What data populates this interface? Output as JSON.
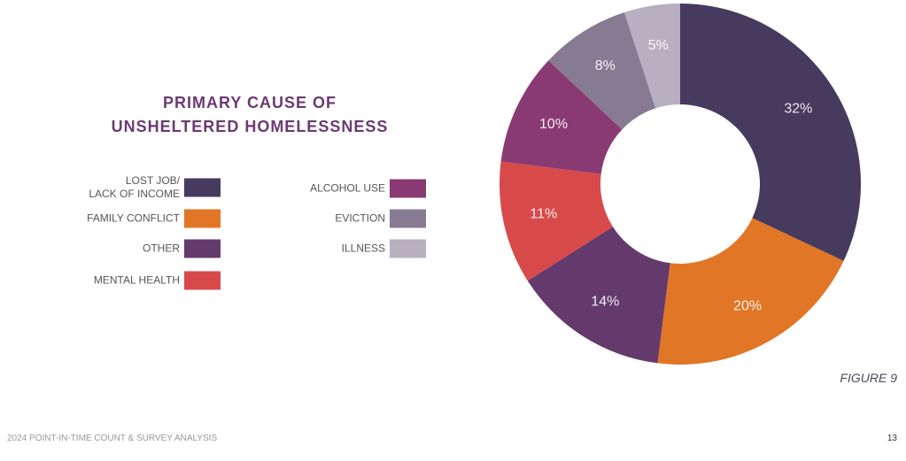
{
  "chart_data": {
    "type": "donut",
    "title": "PRIMARY CAUSE OF\nUNSHELTERED HOMELESSNESS",
    "series": [
      {
        "name": "LOST JOB/\nLACK OF INCOME",
        "color": "#463a5e"
      },
      {
        "name": "FAMILY CONFLICT",
        "color": "#e07626"
      },
      {
        "name": "OTHER",
        "color": "#643a6d"
      },
      {
        "name": "MENTAL HEALTH",
        "color": "#d84a4a"
      },
      {
        "name": "ALCOHOL USE",
        "color": "#8a3a72"
      },
      {
        "name": "EVICTION",
        "color": "#877a93"
      },
      {
        "name": "ILLNESS",
        "color": "#b8b0c0"
      }
    ],
    "values": [
      32,
      20,
      14,
      11,
      10,
      8,
      5
    ],
    "value_labels": [
      "32%",
      "20%",
      "14%",
      "11%",
      "10%",
      "8%",
      "5%"
    ]
  },
  "figure_label": "FIGURE 9",
  "footer": {
    "text": "2024 POINT-IN-TIME COUNT & SURVEY ANALYSIS",
    "page_number": "13"
  }
}
